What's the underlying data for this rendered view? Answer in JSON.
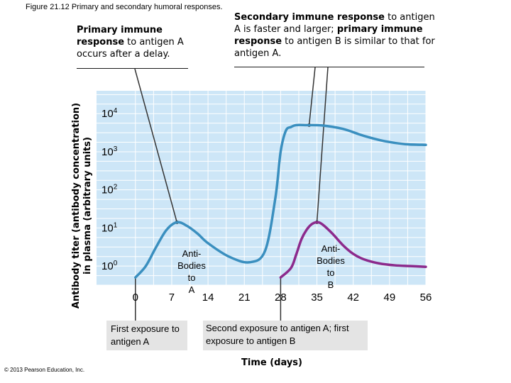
{
  "figure_title": "Figure 21.12  Primary and secondary humoral responses.",
  "callouts": {
    "primary": {
      "bold": "Primary immune response",
      "rest": " to antigen A occurs after a delay."
    },
    "secondary": {
      "bold1": "Secondary immune response",
      "mid": " to antigen A is faster and larger; ",
      "bold2": "primary immune response",
      "rest": " to antigen B is similar to that for antigen A."
    }
  },
  "exposures": {
    "first": "First exposure to antigen A",
    "second": "Second exposure to antigen A; first exposure to antigen B"
  },
  "copyright": "© 2013 Pearson Education, Inc.",
  "colors": {
    "plot_bg": "#cde6f7",
    "grid": "#ffffff",
    "series_a": "#3a8fbf",
    "series_b": "#8c2a8c",
    "exposure_box": "#e4e4e4"
  },
  "chart_data": {
    "type": "line",
    "title": "",
    "xlabel": "Time (days)",
    "ylabel_line1": "Antibody titer (antibody concentration)",
    "ylabel_line2": "in plasma (arbitrary units)",
    "x_ticks": [
      "0",
      "7",
      "14",
      "21",
      "28",
      "35",
      "42",
      "49",
      "56"
    ],
    "y_ticks": [
      {
        "base": "10",
        "exp": "0",
        "value": 0
      },
      {
        "base": "10",
        "exp": "1",
        "value": 1
      },
      {
        "base": "10",
        "exp": "2",
        "value": 2
      },
      {
        "base": "10",
        "exp": "3",
        "value": 3
      },
      {
        "base": "10",
        "exp": "4",
        "value": 4
      }
    ],
    "xlim": [
      -7.5,
      56
    ],
    "ylim_log10": [
      -0.5,
      4.6
    ],
    "series": [
      {
        "name": "Antibodies to A",
        "label": "Anti- Bodies to A",
        "x": [
          0,
          2,
          4,
          6,
          8,
          10,
          12,
          14,
          18,
          22,
          25,
          27,
          28,
          29,
          30,
          31,
          33,
          36,
          40,
          44,
          48,
          52,
          56
        ],
        "y": [
          -0.3,
          0.0,
          0.5,
          0.95,
          1.15,
          1.05,
          0.85,
          0.6,
          0.25,
          0.1,
          0.4,
          1.8,
          3.0,
          3.55,
          3.65,
          3.7,
          3.7,
          3.69,
          3.6,
          3.42,
          3.28,
          3.2,
          3.18
        ]
      },
      {
        "name": "Antibodies to B",
        "label": "Anti- Bodies to B",
        "x": [
          28,
          30,
          31,
          32,
          33,
          34,
          35,
          36,
          38,
          40,
          42,
          44,
          47,
          50,
          53,
          56
        ],
        "y": [
          -0.3,
          -0.05,
          0.3,
          0.7,
          0.95,
          1.1,
          1.15,
          1.1,
          0.85,
          0.55,
          0.32,
          0.18,
          0.07,
          0.02,
          0.0,
          -0.02
        ]
      }
    ]
  }
}
